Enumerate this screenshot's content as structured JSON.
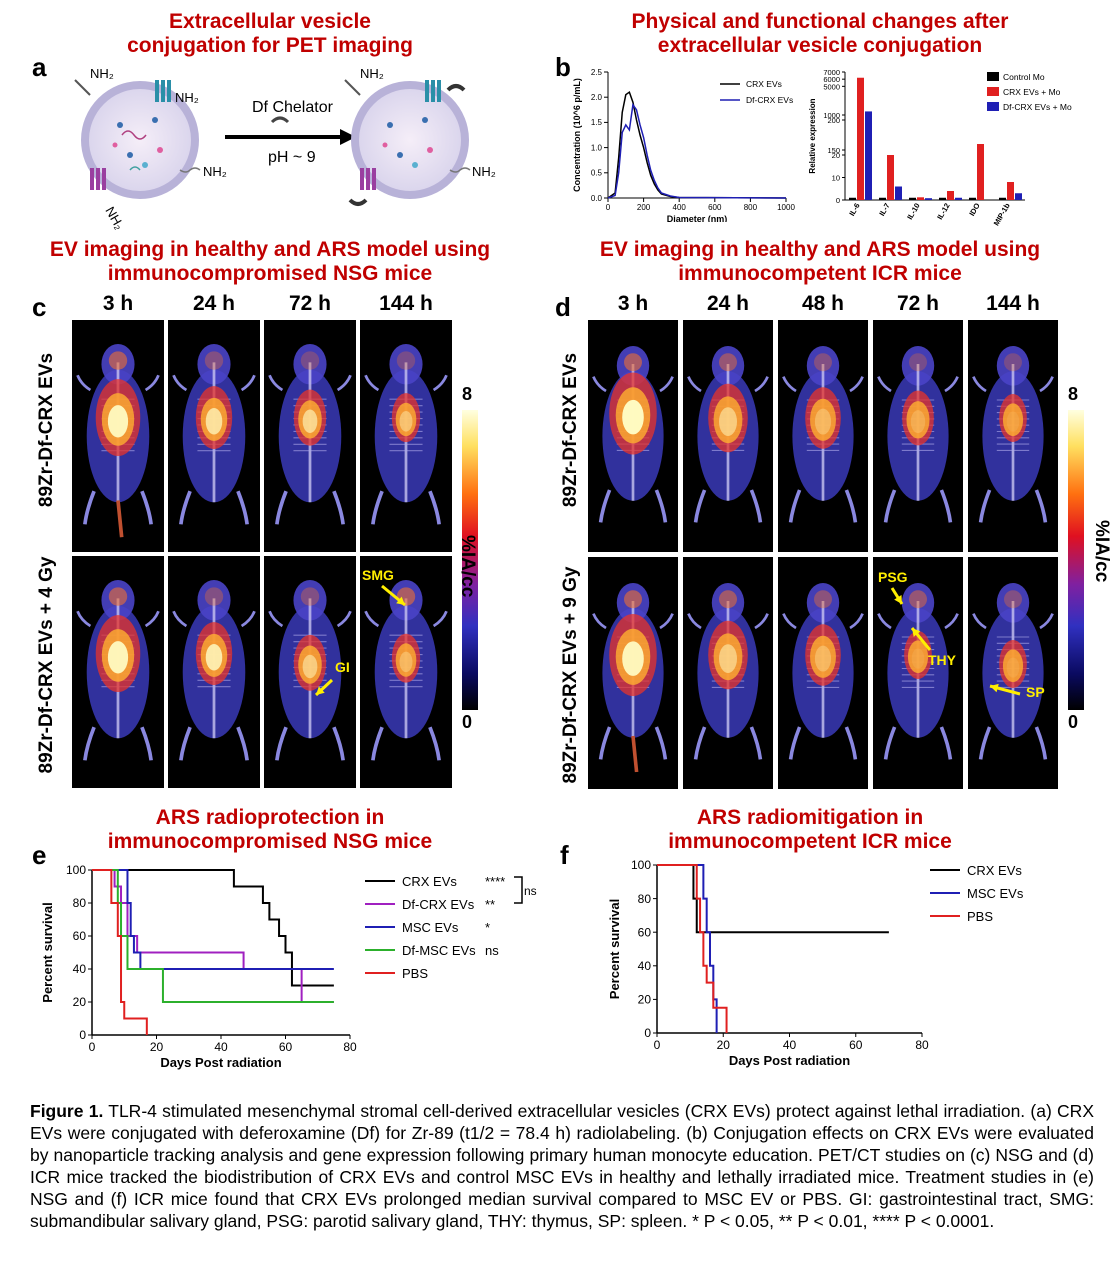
{
  "headings": {
    "a": "Extracellular vesicle\nconjugation for PET imaging",
    "b": "Physical and functional changes after\nextracellular vesicle conjugation",
    "c": "EV imaging in healthy and ARS model using\nimmunocompromised NSG mice",
    "d": "EV imaging in healthy and ARS model using\nimmunocompetent ICR mice",
    "e": "ARS radioprotection in\nimmunocompromised NSG mice",
    "f": "ARS radiomitigation in\nimmunocompetent ICR mice"
  },
  "panel_letters": {
    "a": "a",
    "b": "b",
    "c": "c",
    "d": "d",
    "e": "e",
    "f": "f"
  },
  "panel_a": {
    "arrow_label_top": "Df Chelator",
    "arrow_label_bottom": "pH ~ 9",
    "amine": "NH2"
  },
  "panel_c": {
    "times": [
      "3 h",
      "24 h",
      "72 h",
      "144 h"
    ],
    "row1_label": "89Zr-Df-CRX EVs",
    "row2_label": "89Zr-Df-CRX EVs + 4 Gy",
    "scale_max": "8",
    "scale_min": "0",
    "scale_unit": "%IA/cc",
    "annotations": [
      "SMG",
      "GI"
    ]
  },
  "panel_d": {
    "times": [
      "3 h",
      "24 h",
      "48 h",
      "72 h",
      "144 h"
    ],
    "row1_label": "89Zr-Df-CRX EVs",
    "row2_label": "89Zr-Df-CRX EVs + 9 Gy",
    "scale_max": "8",
    "scale_min": "0",
    "scale_unit": "%IA/cc",
    "annotations": [
      "PSG",
      "THY",
      "SP"
    ]
  },
  "caption": {
    "lead": "Figure 1.",
    "text": " TLR-4 stimulated mesenchymal stromal cell-derived extracellular vesicles (CRX EVs) protect against lethal irradiation. (a) CRX EVs were conjugated with deferoxamine (Df) for Zr-89 (t1/2 = 78.4 h) radiolabeling. (b) Conjugation effects on CRX EVs were evaluated by nanoparticle tracking analysis and gene expression following primary human monocyte education. PET/CT studies on (c) NSG and (d) ICR mice tracked the biodistribution of CRX EVs and control MSC EVs in healthy and lethally irradiated mice. Treatment studies in (e) NSG and (f) ICR mice found that CRX EVs prolonged median survival compared to MSC EV or PBS. GI: gastrointestinal tract, SMG: submandibular salivary gland, PSG: parotid salivary gland, THY: thymus, SP: spleen. * P < 0.05, ** P < 0.01, **** P < 0.0001."
  },
  "colors": {
    "heading": "#c00000",
    "crx": "#000000",
    "df_crx": "#a020c0",
    "msc": "#1f1fb4",
    "df_msc": "#2cb02c",
    "pbs": "#e02020"
  },
  "chart_data": [
    {
      "type": "line",
      "id": "b-nta",
      "xlabel": "Diameter (nm)",
      "ylabel": "Concentration (10^6 p/mL)",
      "xlim": [
        0,
        1000
      ],
      "ylim": [
        0,
        2.5
      ],
      "xticks": [
        0,
        200,
        400,
        600,
        800,
        1000
      ],
      "yticks": [
        0,
        0.5,
        1.0,
        1.5,
        2.0,
        2.5
      ],
      "series": [
        {
          "name": "CRX EVs",
          "color": "#000000",
          "x": [
            0,
            40,
            60,
            80,
            100,
            120,
            140,
            160,
            180,
            200,
            220,
            240,
            260,
            280,
            300,
            350,
            400,
            1000
          ],
          "y": [
            0,
            0.1,
            0.8,
            1.7,
            2.05,
            2.1,
            1.9,
            1.55,
            1.25,
            1.0,
            0.7,
            0.45,
            0.28,
            0.16,
            0.08,
            0.03,
            0.01,
            0
          ]
        },
        {
          "name": "Df-CRX EVs",
          "color": "#1f1fb4",
          "x": [
            0,
            40,
            60,
            80,
            100,
            120,
            140,
            160,
            180,
            200,
            220,
            240,
            260,
            280,
            300,
            350,
            400,
            1000
          ],
          "y": [
            0,
            0.05,
            0.5,
            1.3,
            1.45,
            1.35,
            1.85,
            1.75,
            1.45,
            1.2,
            0.85,
            0.55,
            0.35,
            0.2,
            0.1,
            0.04,
            0.01,
            0
          ]
        }
      ]
    },
    {
      "type": "bar",
      "id": "b-expression",
      "ylabel": "Relative expression",
      "categories": [
        "IL-6",
        "IL-7",
        "IL-10",
        "IL-12",
        "IDO",
        "MIP-1b"
      ],
      "yticks": [
        "0",
        "10",
        "20",
        "150",
        "200",
        "1000",
        "5000",
        "6000",
        "7000"
      ],
      "series": [
        {
          "name": "Control Mo",
          "color": "#000000",
          "values": [
            1,
            1,
            1,
            1,
            1,
            1
          ]
        },
        {
          "name": "CRX EVs + Mo",
          "color": "#e02020",
          "values": [
            6200,
            20,
            1.2,
            4,
            160,
            8
          ]
        },
        {
          "name": "Df-CRX EVs + Mo",
          "color": "#1f1fb4",
          "values": [
            1500,
            6,
            0.8,
            1,
            21,
            3
          ]
        }
      ]
    },
    {
      "type": "line",
      "id": "e-survival",
      "xlabel": "Days Post radiation",
      "ylabel": "Percent survival",
      "xlim": [
        0,
        80
      ],
      "ylim": [
        0,
        100
      ],
      "xticks": [
        0,
        20,
        40,
        60,
        80
      ],
      "yticks": [
        0,
        20,
        40,
        60,
        80,
        100
      ],
      "series": [
        {
          "name": "CRX EVs",
          "sig": "****",
          "color": "#000000",
          "x": [
            0,
            44,
            44,
            53,
            53,
            55,
            55,
            58,
            58,
            60,
            60,
            62,
            62,
            75
          ],
          "y": [
            100,
            100,
            90,
            90,
            80,
            80,
            70,
            70,
            60,
            60,
            50,
            50,
            30,
            30
          ]
        },
        {
          "name": "Df-CRX EVs",
          "sig": "**",
          "color": "#a020c0",
          "x": [
            0,
            7,
            7,
            9,
            9,
            11,
            11,
            14,
            14,
            17,
            17,
            47,
            47,
            65,
            65,
            75
          ],
          "y": [
            100,
            100,
            90,
            90,
            80,
            80,
            60,
            60,
            50,
            50,
            50,
            50,
            40,
            40,
            20,
            20
          ]
        },
        {
          "name": "MSC EVs",
          "sig": "*",
          "color": "#1f1fb4",
          "x": [
            0,
            11,
            11,
            12,
            12,
            13,
            13,
            15,
            15,
            61,
            61,
            75
          ],
          "y": [
            100,
            100,
            80,
            80,
            60,
            60,
            50,
            50,
            40,
            40,
            40,
            40
          ]
        },
        {
          "name": "Df-MSC EVs",
          "sig": "ns",
          "color": "#2cb02c",
          "x": [
            0,
            8,
            8,
            9,
            9,
            11,
            11,
            22,
            22,
            75
          ],
          "y": [
            100,
            100,
            80,
            80,
            60,
            60,
            40,
            40,
            20,
            20
          ]
        },
        {
          "name": "PBS",
          "color": "#e02020",
          "x": [
            0,
            6,
            6,
            8,
            8,
            9,
            9,
            10,
            10,
            12,
            12,
            17,
            17
          ],
          "y": [
            100,
            100,
            80,
            80,
            60,
            60,
            20,
            20,
            10,
            10,
            10,
            10,
            0
          ]
        }
      ],
      "bracket_label": "ns"
    },
    {
      "type": "line",
      "id": "f-survival",
      "xlabel": "Days Post radiation",
      "ylabel": "Percent survival",
      "xlim": [
        0,
        80
      ],
      "ylim": [
        0,
        100
      ],
      "xticks": [
        0,
        20,
        40,
        60,
        80
      ],
      "yticks": [
        0,
        20,
        40,
        60,
        80,
        100
      ],
      "series": [
        {
          "name": "CRX EVs",
          "color": "#000000",
          "x": [
            0,
            11,
            11,
            12,
            12,
            70
          ],
          "y": [
            100,
            100,
            80,
            80,
            60,
            60
          ]
        },
        {
          "name": "MSC EVs",
          "color": "#1f1fb4",
          "x": [
            0,
            14,
            14,
            15,
            15,
            16,
            16,
            17,
            17,
            18,
            18
          ],
          "y": [
            100,
            100,
            80,
            80,
            60,
            60,
            40,
            40,
            20,
            20,
            0
          ]
        },
        {
          "name": "PBS",
          "color": "#e02020",
          "x": [
            0,
            12,
            12,
            13,
            13,
            14,
            14,
            15,
            15,
            17,
            17,
            19,
            19,
            21,
            21
          ],
          "y": [
            100,
            100,
            80,
            80,
            60,
            60,
            40,
            40,
            30,
            30,
            15,
            15,
            15,
            15,
            0
          ]
        }
      ]
    }
  ]
}
